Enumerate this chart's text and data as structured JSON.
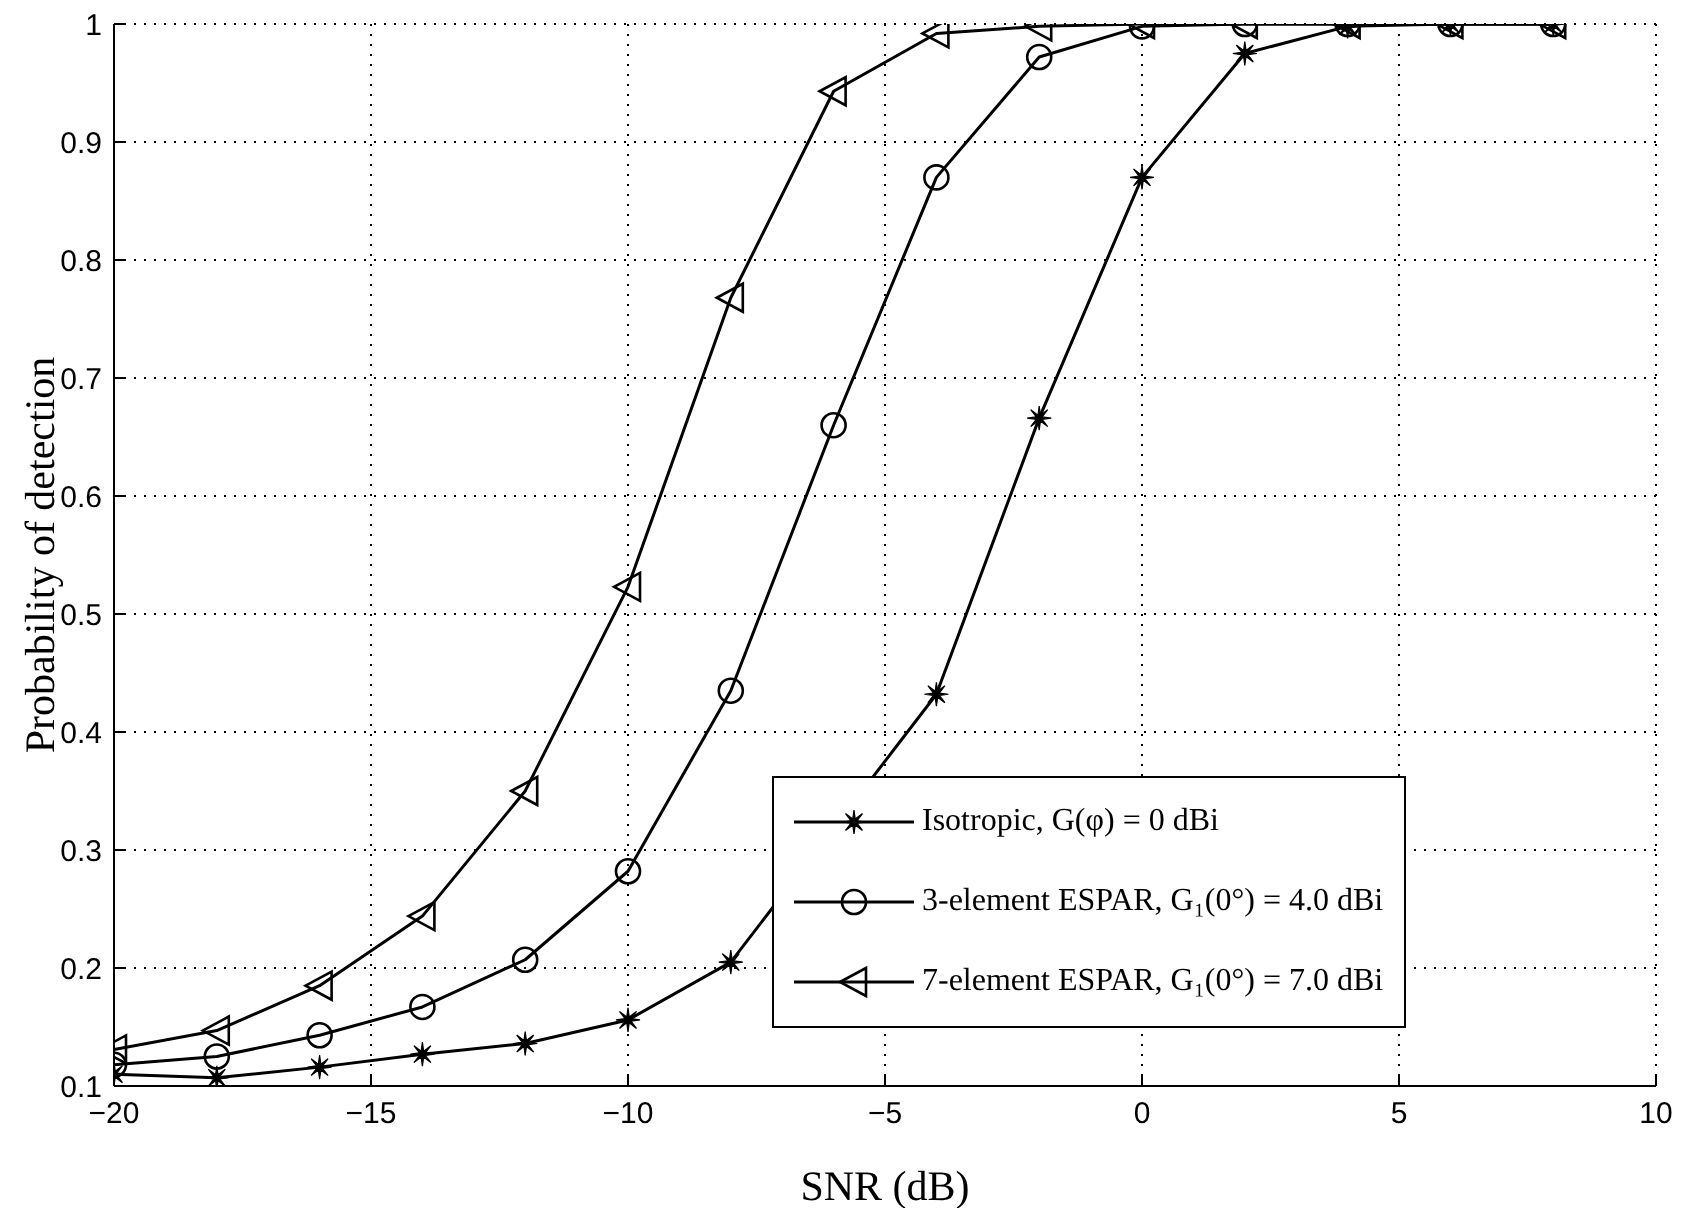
{
  "chart_data": {
    "type": "line",
    "xlabel": "SNR (dB)",
    "ylabel": "Probability of detection",
    "x": [
      -20,
      -18,
      -16,
      -14,
      -12,
      -10,
      -8,
      -6,
      -4,
      -2,
      0,
      2,
      4,
      6,
      8
    ],
    "xlim": [
      -20,
      10
    ],
    "xticks": [
      -20,
      -15,
      -10,
      -5,
      0,
      5,
      10
    ],
    "ylim": [
      0.1,
      1
    ],
    "yticks": [
      0.1,
      0.2,
      0.3,
      0.4,
      0.5,
      0.6,
      0.7,
      0.8,
      0.9,
      1
    ],
    "grid": true,
    "legend": "bottom right",
    "line_style": "solid",
    "series": [
      {
        "name": "Isotropic, G(φ) = 0 dBi",
        "color": "#000000",
        "marker": "star",
        "values": [
          0.11,
          0.107,
          0.116,
          0.127,
          0.136,
          0.156,
          0.205,
          null,
          0.432,
          0.666,
          0.87,
          0.975,
          0.998,
          1,
          1
        ]
      },
      {
        "name": "3-element ESPAR, G₁(0°) = 4.0 dBi",
        "color": "#000000",
        "marker": "circle",
        "values": [
          0.118,
          0.125,
          0.143,
          0.167,
          0.207,
          0.282,
          0.435,
          0.66,
          0.87,
          0.972,
          0.998,
          1,
          1,
          1,
          1
        ]
      },
      {
        "name": "7-element ESPAR, G₁(0°) = 7.0 dBi",
        "color": "#000000",
        "marker": "triangle",
        "values": [
          0.131,
          0.147,
          0.185,
          0.244,
          0.35,
          0.523,
          0.768,
          0.943,
          0.992,
          0.998,
          1,
          1,
          1,
          1,
          1
        ]
      }
    ]
  }
}
